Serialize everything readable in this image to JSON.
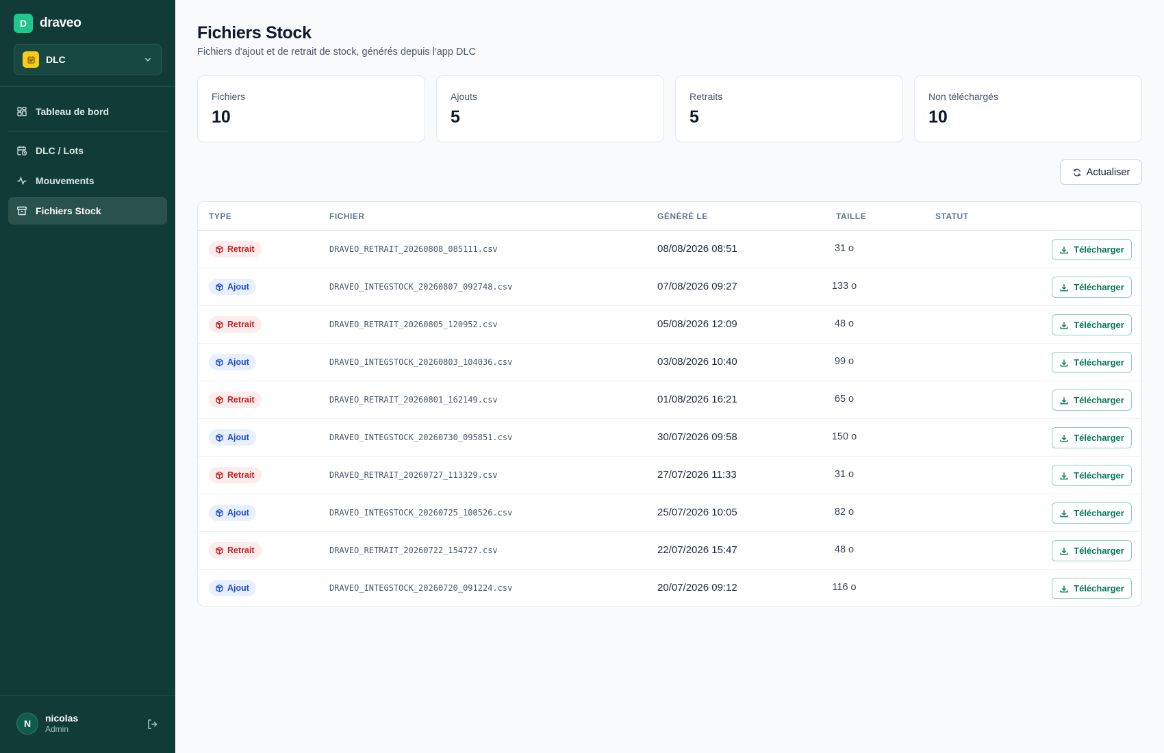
{
  "brand": {
    "logo_letter": "D",
    "name": "draveo"
  },
  "app_selector": {
    "label": "DLC",
    "icon": "calendar-icon"
  },
  "sidebar": {
    "items": [
      {
        "label": "Tableau de bord",
        "icon": "dashboard-grid-icon",
        "active": false
      },
      {
        "label": "DLC / Lots",
        "icon": "calendar-clock-icon",
        "active": false
      },
      {
        "label": "Mouvements",
        "icon": "activity-icon",
        "active": false
      },
      {
        "label": "Fichiers Stock",
        "icon": "archive-box-icon",
        "active": true
      }
    ]
  },
  "user": {
    "initial": "N",
    "name": "nicolas",
    "role": "Admin"
  },
  "page": {
    "title": "Fichiers Stock",
    "subtitle": "Fichiers d'ajout et de retrait de stock, générés depuis l'app DLC"
  },
  "stats": [
    {
      "label": "Fichiers",
      "value": "10"
    },
    {
      "label": "Ajouts",
      "value": "5"
    },
    {
      "label": "Retraits",
      "value": "5"
    },
    {
      "label": "Non téléchargés",
      "value": "10"
    }
  ],
  "refresh_label": "Actualiser",
  "table": {
    "headers": {
      "type": "TYPE",
      "file": "FICHIER",
      "date": "GÉNÉRÉ LE",
      "size": "TAILLE",
      "status": "STATUT"
    },
    "download_label": "Télécharger",
    "rows": [
      {
        "type": "Retrait",
        "kind": "retrait",
        "file": "DRAVEO_RETRAIT_20260808_085111.csv",
        "date": "08/08/2026 08:51",
        "size": "31 o"
      },
      {
        "type": "Ajout",
        "kind": "ajout",
        "file": "DRAVEO_INTEGSTOCK_20260807_092748.csv",
        "date": "07/08/2026 09:27",
        "size": "133 o"
      },
      {
        "type": "Retrait",
        "kind": "retrait",
        "file": "DRAVEO_RETRAIT_20260805_120952.csv",
        "date": "05/08/2026 12:09",
        "size": "48 o"
      },
      {
        "type": "Ajout",
        "kind": "ajout",
        "file": "DRAVEO_INTEGSTOCK_20260803_104036.csv",
        "date": "03/08/2026 10:40",
        "size": "99 o"
      },
      {
        "type": "Retrait",
        "kind": "retrait",
        "file": "DRAVEO_RETRAIT_20260801_162149.csv",
        "date": "01/08/2026 16:21",
        "size": "65 o"
      },
      {
        "type": "Ajout",
        "kind": "ajout",
        "file": "DRAVEO_INTEGSTOCK_20260730_095851.csv",
        "date": "30/07/2026 09:58",
        "size": "150 o"
      },
      {
        "type": "Retrait",
        "kind": "retrait",
        "file": "DRAVEO_RETRAIT_20260727_113329.csv",
        "date": "27/07/2026 11:33",
        "size": "31 o"
      },
      {
        "type": "Ajout",
        "kind": "ajout",
        "file": "DRAVEO_INTEGSTOCK_20260725_100526.csv",
        "date": "25/07/2026 10:05",
        "size": "82 o"
      },
      {
        "type": "Retrait",
        "kind": "retrait",
        "file": "DRAVEO_RETRAIT_20260722_154727.csv",
        "date": "22/07/2026 15:47",
        "size": "48 o"
      },
      {
        "type": "Ajout",
        "kind": "ajout",
        "file": "DRAVEO_INTEGSTOCK_20260720_091224.csv",
        "date": "20/07/2026 09:12",
        "size": "116 o"
      }
    ]
  },
  "colors": {
    "sidebar_bg": "#113b37",
    "brand_green": "#22c58b",
    "retrait": "#c81e1e",
    "ajout": "#1d4ed8",
    "download": "#047857"
  }
}
